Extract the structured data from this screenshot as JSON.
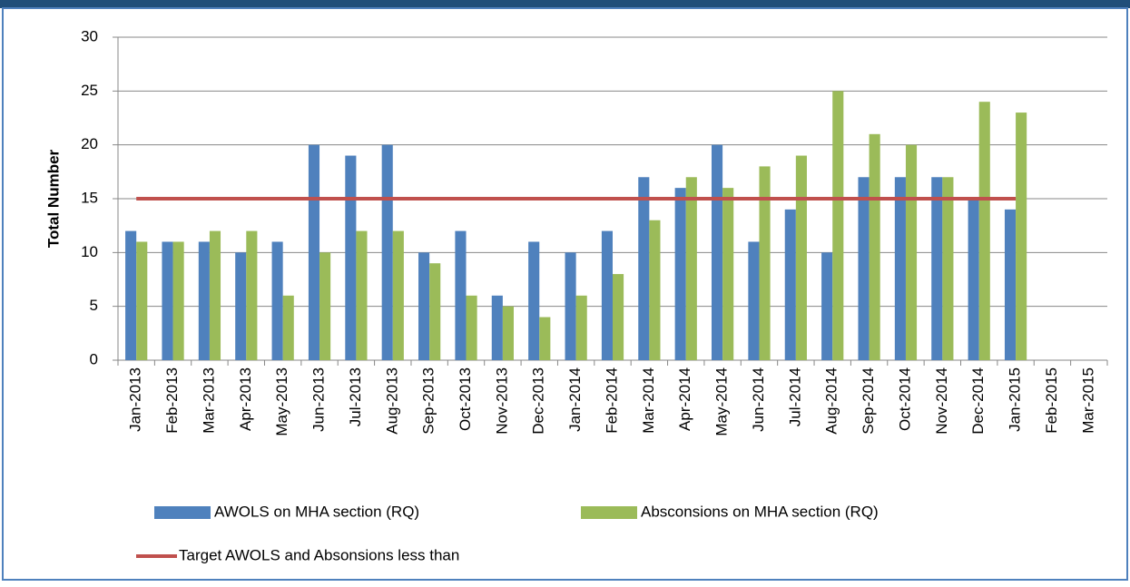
{
  "chart_data": {
    "type": "bar",
    "y_label": "Total Number",
    "categories": [
      "Jan-2013",
      "Feb-2013",
      "Mar-2013",
      "Apr-2013",
      "May-2013",
      "Jun-2013",
      "Jul-2013",
      "Aug-2013",
      "Sep-2013",
      "Oct-2013",
      "Nov-2013",
      "Dec-2013",
      "Jan-2014",
      "Feb-2014",
      "Mar-2014",
      "Apr-2014",
      "May-2014",
      "Jun-2014",
      "Jul-2014",
      "Aug-2014",
      "Sep-2014",
      "Oct-2014",
      "Nov-2014",
      "Dec-2014",
      "Jan-2015",
      "Feb-2015",
      "Mar-2015"
    ],
    "series": [
      {
        "name": "AWOLS on MHA section (RQ)",
        "color": "#4f81bd",
        "type": "bar",
        "values": [
          12,
          11,
          11,
          10,
          11,
          20,
          19,
          20,
          10,
          12,
          6,
          11,
          10,
          12,
          17,
          16,
          20,
          11,
          14,
          10,
          17,
          17,
          17,
          15,
          14,
          null,
          null
        ]
      },
      {
        "name": "Absconsions on MHA section (RQ)",
        "color": "#9bbb59",
        "type": "bar",
        "values": [
          11,
          11,
          12,
          12,
          6,
          10,
          12,
          12,
          9,
          6,
          5,
          4,
          6,
          8,
          13,
          17,
          16,
          18,
          19,
          25,
          21,
          20,
          17,
          24,
          23,
          null,
          null
        ]
      },
      {
        "name": "Target AWOLS and Absonsions less than",
        "color": "#c0504d",
        "type": "line",
        "values": [
          15,
          15,
          15,
          15,
          15,
          15,
          15,
          15,
          15,
          15,
          15,
          15,
          15,
          15,
          15,
          15,
          15,
          15,
          15,
          15,
          15,
          15,
          15,
          15,
          15,
          null,
          null
        ]
      }
    ],
    "ylim": [
      0,
      30
    ],
    "yticks": [
      0,
      5,
      10,
      15,
      20,
      25,
      30
    ],
    "grid": true,
    "legend": "bottom"
  }
}
